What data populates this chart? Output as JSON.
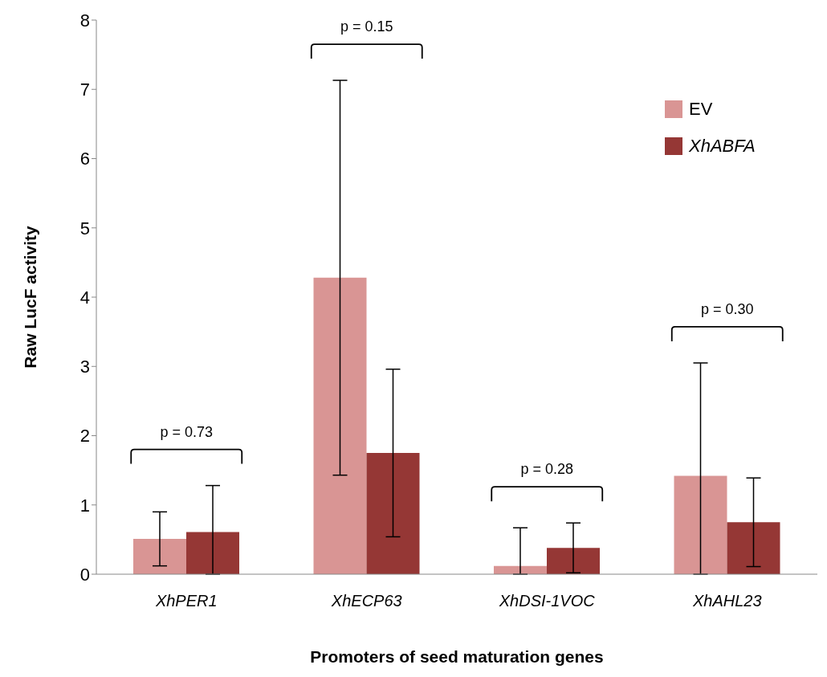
{
  "chart_data": {
    "type": "bar",
    "xlabel": "Promoters of seed maturation genes",
    "ylabel": "Raw LucF activity",
    "categories": [
      "XhPER1",
      "XhECP63",
      "XhDSI-1VOC",
      "XhAHL23"
    ],
    "series": [
      {
        "name": "EV",
        "color": "#d99594",
        "values": [
          0.51,
          4.28,
          0.12,
          1.42
        ],
        "errors": [
          0.39,
          2.85,
          [
            0,
            0.67
          ],
          [
            0,
            3.05
          ]
        ]
      },
      {
        "name": "XhABFA",
        "color": "#953735",
        "values": [
          0.61,
          1.75,
          0.38,
          0.75
        ],
        "errors": [
          [
            0,
            1.28
          ],
          1.21,
          0.36,
          0.64
        ]
      }
    ],
    "ylim": [
      0,
      8
    ],
    "yticks": [
      0,
      1,
      2,
      3,
      4,
      5,
      6,
      7,
      8
    ],
    "grid": false,
    "legend": "top right",
    "annotations": [
      "p = 0.73",
      "p = 0.15",
      "p = 0.28",
      "p = 0.30"
    ]
  }
}
